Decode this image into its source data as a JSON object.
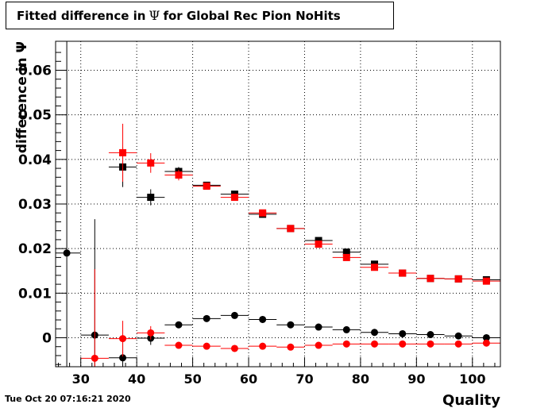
{
  "title": {
    "prefix": "Fitted difference in",
    "symbol": "Ψ",
    "suffix": "for Global Rec Pion NoHits"
  },
  "timestamp": "Tue Oct 20 07:16:21 2020",
  "chart_data": {
    "type": "scatter",
    "xlabel": "Quality",
    "ylabel": "difference in Ψ",
    "xlim": [
      25.5,
      105
    ],
    "ylim": [
      -0.0065,
      0.0665
    ],
    "xticks": [
      30,
      40,
      50,
      60,
      70,
      80,
      90,
      100
    ],
    "yticks": [
      0,
      0.01,
      0.02,
      0.03,
      0.04,
      0.05,
      0.06
    ],
    "ytick_labels": [
      "0",
      "0.01",
      "0.02",
      "0.03",
      "0.04",
      "0.05",
      "0.06"
    ],
    "grid": true,
    "colors": {
      "black": "#000000",
      "red": "#ff0000"
    },
    "series": [
      {
        "marker": "square",
        "color": "#000000",
        "x": [
          37.5,
          42.5,
          47.5,
          52.5,
          57.5,
          62.5,
          67.5,
          72.5,
          77.5,
          82.5,
          87.5,
          92.5,
          97.5,
          102.5
        ],
        "y": [
          0.0383,
          0.0315,
          0.0373,
          0.0342,
          0.0322,
          0.0277,
          0.0245,
          0.0218,
          0.0192,
          0.0165,
          0.0145,
          0.0133,
          0.0132,
          0.013
        ],
        "err": [
          0.0045,
          0.0018,
          0.001,
          0.0007,
          0.0006,
          0.0005,
          0.0004,
          0.0004,
          0.0004,
          0.0003,
          0.0003,
          0.0003,
          0.0003,
          0.0003
        ]
      },
      {
        "marker": "square",
        "color": "#ff0000",
        "x": [
          37.5,
          42.5,
          47.5,
          52.5,
          57.5,
          62.5,
          67.5,
          72.5,
          77.5,
          82.5,
          87.5,
          92.5,
          97.5,
          102.5
        ],
        "y": [
          0.0415,
          0.0392,
          0.0365,
          0.034,
          0.0315,
          0.028,
          0.0245,
          0.021,
          0.018,
          0.0158,
          0.0145,
          0.0133,
          0.0132,
          0.0127
        ],
        "err": [
          0.0065,
          0.0022,
          0.0012,
          0.0008,
          0.0006,
          0.0005,
          0.0004,
          0.0004,
          0.0004,
          0.0003,
          0.0003,
          0.0003,
          0.0003,
          0.0003
        ]
      },
      {
        "marker": "circle",
        "color": "#000000",
        "x": [
          27.5,
          32.5,
          37.5,
          42.5,
          47.5,
          52.5,
          57.5,
          62.5,
          67.5,
          72.5,
          77.5,
          82.5,
          87.5,
          92.5,
          97.5,
          102.5
        ],
        "y": [
          0.019,
          0.0006,
          -0.0045,
          -0.0001,
          0.0029,
          0.0043,
          0.005,
          0.0041,
          0.0029,
          0.0024,
          0.0018,
          0.0012,
          0.0009,
          0.0007,
          0.0004,
          0.0
        ],
        "err": [
          0.06,
          0.026,
          0.004,
          0.0015,
          0.0006,
          0.0004,
          0.0004,
          0.0003,
          0.0003,
          0.0003,
          0.0002,
          0.0002,
          0.0002,
          0.0002,
          0.0002,
          0.0002
        ]
      },
      {
        "marker": "circle",
        "color": "#ff0000",
        "x": [
          32.5,
          37.5,
          42.5,
          47.5,
          52.5,
          57.5,
          62.5,
          67.5,
          72.5,
          77.5,
          82.5,
          87.5,
          92.5,
          97.5,
          102.5
        ],
        "y": [
          -0.0046,
          -0.0002,
          0.0011,
          -0.0017,
          -0.0019,
          -0.0024,
          -0.0019,
          -0.0021,
          -0.0017,
          -0.0014,
          -0.0014,
          -0.0014,
          -0.0014,
          -0.0014,
          -0.0012
        ],
        "err": [
          0.02,
          0.004,
          0.0015,
          0.0006,
          0.0004,
          0.0004,
          0.0003,
          0.0003,
          0.0003,
          0.0002,
          0.0002,
          0.0002,
          0.0002,
          0.0002,
          0.0002
        ]
      }
    ]
  }
}
